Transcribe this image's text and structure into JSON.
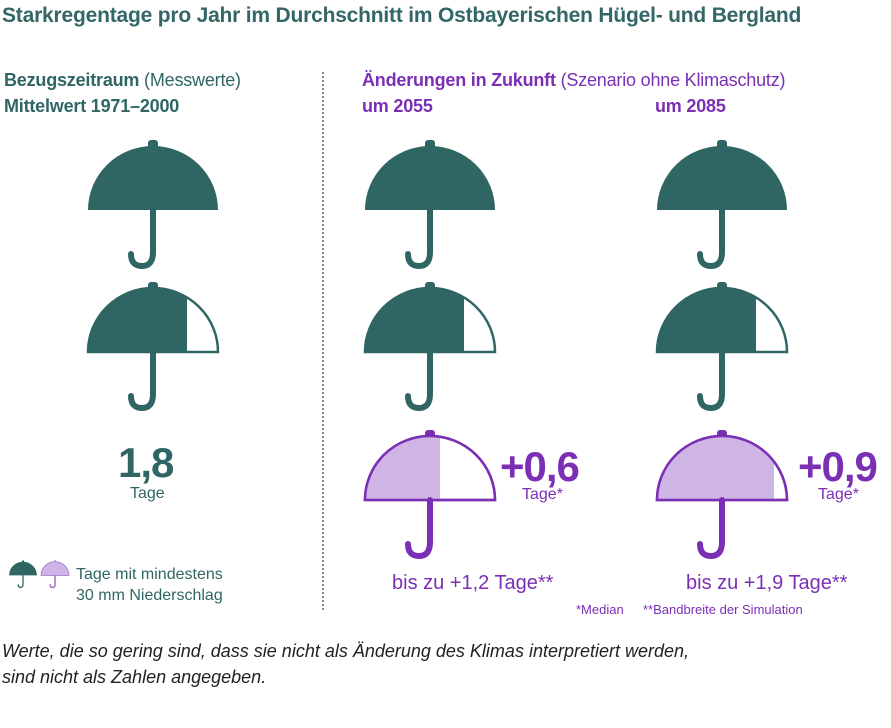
{
  "title": "Starkregentage pro Jahr im Durchschnitt im Ostbayerischen Hügel- und Bergland",
  "reference": {
    "heading_bold": "Bezugszeitraum",
    "heading_normal": "(Messwerte)",
    "subheading": "Mittelwert 1971–2000",
    "value": "1,8",
    "unit": "Tage",
    "icon_fill_fraction": 1.8
  },
  "future": {
    "heading_bold": "Änderungen in Zukunft",
    "heading_normal": "(Szenario ohne Klimaschutz)",
    "periods": [
      {
        "label": "um 2055",
        "value": "+0,6",
        "unit": "Tage*",
        "range": "bis zu +1,2 Tage**",
        "change_fill_fraction": 0.6
      },
      {
        "label": "um 2085",
        "value": "+0,9",
        "unit": "Tage*",
        "range": "bis zu +1,9 Tage**",
        "change_fill_fraction": 0.9
      }
    ]
  },
  "notes": {
    "median": "*Median",
    "bandwidth": "**Bandbreite der Simulation"
  },
  "legend": {
    "line1": "Tage mit mindestens",
    "line2": "30 mm Niederschlag"
  },
  "footer": {
    "line1": "Werte, die so gering sind, dass sie nicht als Änderung des Klimas interpretiert werden,",
    "line2": "sind nicht als Zahlen angegeben."
  },
  "colors": {
    "teal": "#2f6663",
    "purple": "#7b2fb5",
    "lilac": "#cfb5e6"
  },
  "icons": [
    "umbrella-icon"
  ]
}
